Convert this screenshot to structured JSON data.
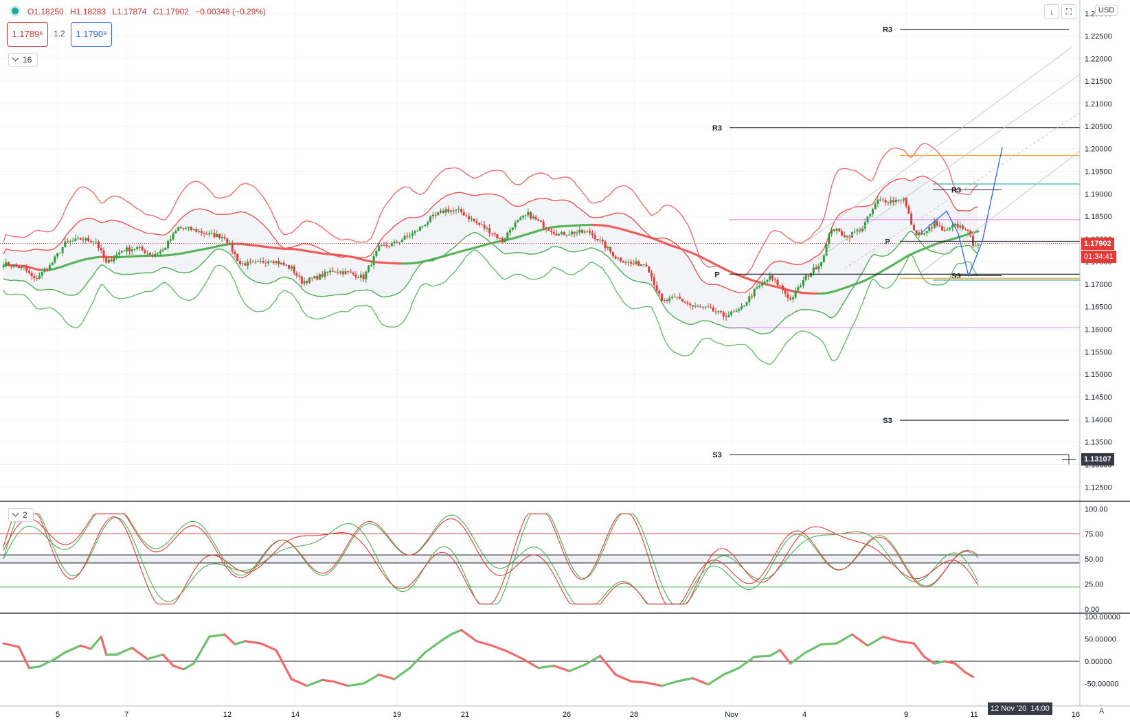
{
  "header": {
    "open": "O1.18250",
    "high": "H1.18283",
    "low": "L1.17874",
    "close": "C1.17902",
    "change": "−0.00348 (−0.29%)",
    "bid": "1.1789⁶",
    "spread": "1.2",
    "ask": "1.1790⁸",
    "pane1_collapse": "16",
    "pane2_collapse": "2",
    "currency": "USD",
    "scale_mode": "A"
  },
  "price_labels": {
    "last_price": "1.17902",
    "countdown": "01:34:41",
    "crosshair_price": "1.13107",
    "crosshair_date": "12 Nov '20",
    "crosshair_time": "14:00"
  },
  "chart_data": [
    {
      "type": "candlestick",
      "ylim": [
        1.122,
        1.233
      ],
      "yticks": [
        1.125,
        1.13,
        1.135,
        1.14,
        1.145,
        1.15,
        1.155,
        1.16,
        1.165,
        1.17,
        1.175,
        1.18,
        1.185,
        1.19,
        1.195,
        1.2,
        1.205,
        1.21,
        1.215,
        1.22,
        1.225,
        1.23
      ],
      "x_tick_labels": [
        "5",
        "7",
        "12",
        "14",
        "19",
        "21",
        "26",
        "28",
        "Nov",
        "4",
        "9",
        "11",
        "16"
      ],
      "close_path": [
        [
          0,
          1.1745
        ],
        [
          8,
          1.1735
        ],
        [
          12,
          1.171
        ],
        [
          18,
          1.174
        ],
        [
          24,
          1.179
        ],
        [
          30,
          1.18
        ],
        [
          36,
          1.1795
        ],
        [
          40,
          1.1745
        ],
        [
          46,
          1.1775
        ],
        [
          52,
          1.178
        ],
        [
          58,
          1.1765
        ],
        [
          62,
          1.1775
        ],
        [
          68,
          1.1825
        ],
        [
          74,
          1.182
        ],
        [
          80,
          1.181
        ],
        [
          86,
          1.1805
        ],
        [
          92,
          1.1745
        ],
        [
          98,
          1.1745
        ],
        [
          104,
          1.1755
        ],
        [
          112,
          1.1735
        ],
        [
          116,
          1.1705
        ],
        [
          122,
          1.1715
        ],
        [
          128,
          1.173
        ],
        [
          134,
          1.1725
        ],
        [
          140,
          1.1715
        ],
        [
          146,
          1.178
        ],
        [
          152,
          1.179
        ],
        [
          160,
          1.1815
        ],
        [
          166,
          1.1845
        ],
        [
          172,
          1.1865
        ],
        [
          178,
          1.186
        ],
        [
          184,
          1.1835
        ],
        [
          190,
          1.1815
        ],
        [
          194,
          1.1795
        ],
        [
          198,
          1.183
        ],
        [
          204,
          1.1855
        ],
        [
          210,
          1.183
        ],
        [
          216,
          1.181
        ],
        [
          222,
          1.1815
        ],
        [
          228,
          1.1815
        ],
        [
          232,
          1.1795
        ],
        [
          238,
          1.176
        ],
        [
          244,
          1.1745
        ],
        [
          250,
          1.1745
        ],
        [
          256,
          1.166
        ],
        [
          262,
          1.167
        ],
        [
          268,
          1.165
        ],
        [
          274,
          1.1645
        ],
        [
          280,
          1.163
        ],
        [
          286,
          1.164
        ],
        [
          292,
          1.1685
        ],
        [
          298,
          1.1715
        ],
        [
          302,
          1.1695
        ],
        [
          306,
          1.1665
        ],
        [
          312,
          1.1715
        ],
        [
          318,
          1.175
        ],
        [
          322,
          1.1825
        ],
        [
          328,
          1.1805
        ],
        [
          334,
          1.1825
        ],
        [
          340,
          1.1885
        ],
        [
          346,
          1.1885
        ],
        [
          350,
          1.189
        ],
        [
          354,
          1.1815
        ],
        [
          358,
          1.181
        ],
        [
          362,
          1.1835
        ],
        [
          366,
          1.1815
        ],
        [
          370,
          1.183
        ],
        [
          374,
          1.1825
        ],
        [
          377,
          1.179
        ]
      ],
      "levels": [
        {
          "label": "R3",
          "price": 1.2265
        },
        {
          "label": "R3",
          "price": 1.2047
        },
        {
          "label": "R3",
          "price": 1.1909
        },
        {
          "label": "P",
          "price": 1.1795
        },
        {
          "label": "P",
          "price": 1.1722
        },
        {
          "label": "S3",
          "price": 1.1719
        },
        {
          "label": "S3",
          "price": 1.1398
        },
        {
          "label": "S3",
          "price": 1.1322
        }
      ],
      "colors": {
        "up": "#2e9c39",
        "down": "#e53935",
        "band_red": "#ef5350",
        "band_green": "#4caf50",
        "fib_blue": "#2962ff"
      }
    },
    {
      "type": "line",
      "name": "stochastic",
      "ylim": [
        0,
        100
      ],
      "yticks": [
        0,
        25,
        50,
        75,
        100
      ],
      "levels": [
        75,
        54,
        46,
        22
      ]
    },
    {
      "type": "line",
      "name": "oscillator",
      "ylim": [
        -75,
        100
      ],
      "yticks": [
        -50,
        0,
        50,
        100
      ],
      "x": [
        0,
        6,
        10,
        14,
        20,
        24,
        30,
        34,
        38,
        40,
        44,
        50,
        56,
        62,
        66,
        70,
        74,
        80,
        86,
        90,
        94,
        100,
        106,
        112,
        118,
        124,
        128,
        134,
        140,
        146,
        152,
        158,
        164,
        170,
        174,
        178,
        184,
        190,
        196,
        202,
        208,
        214,
        220,
        226,
        232,
        238,
        244,
        250,
        256,
        262,
        268,
        274,
        280,
        286,
        292,
        298,
        302,
        306,
        312,
        318,
        324,
        330,
        336,
        342,
        348,
        354,
        358,
        362,
        366,
        370,
        374,
        377
      ],
      "values": [
        40,
        32,
        -15,
        -12,
        5,
        20,
        35,
        28,
        55,
        15,
        15,
        30,
        5,
        15,
        -10,
        -18,
        -5,
        55,
        60,
        38,
        45,
        40,
        25,
        -40,
        -55,
        -42,
        -45,
        -55,
        -50,
        -30,
        -40,
        -15,
        20,
        45,
        60,
        70,
        45,
        35,
        22,
        5,
        -15,
        -10,
        -22,
        -8,
        12,
        -30,
        -45,
        -48,
        -55,
        -45,
        -38,
        -52,
        -30,
        -15,
        10,
        12,
        25,
        -5,
        20,
        38,
        40,
        60,
        35,
        55,
        45,
        40,
        10,
        -5,
        0,
        -5,
        -25,
        -35
      ]
    }
  ]
}
